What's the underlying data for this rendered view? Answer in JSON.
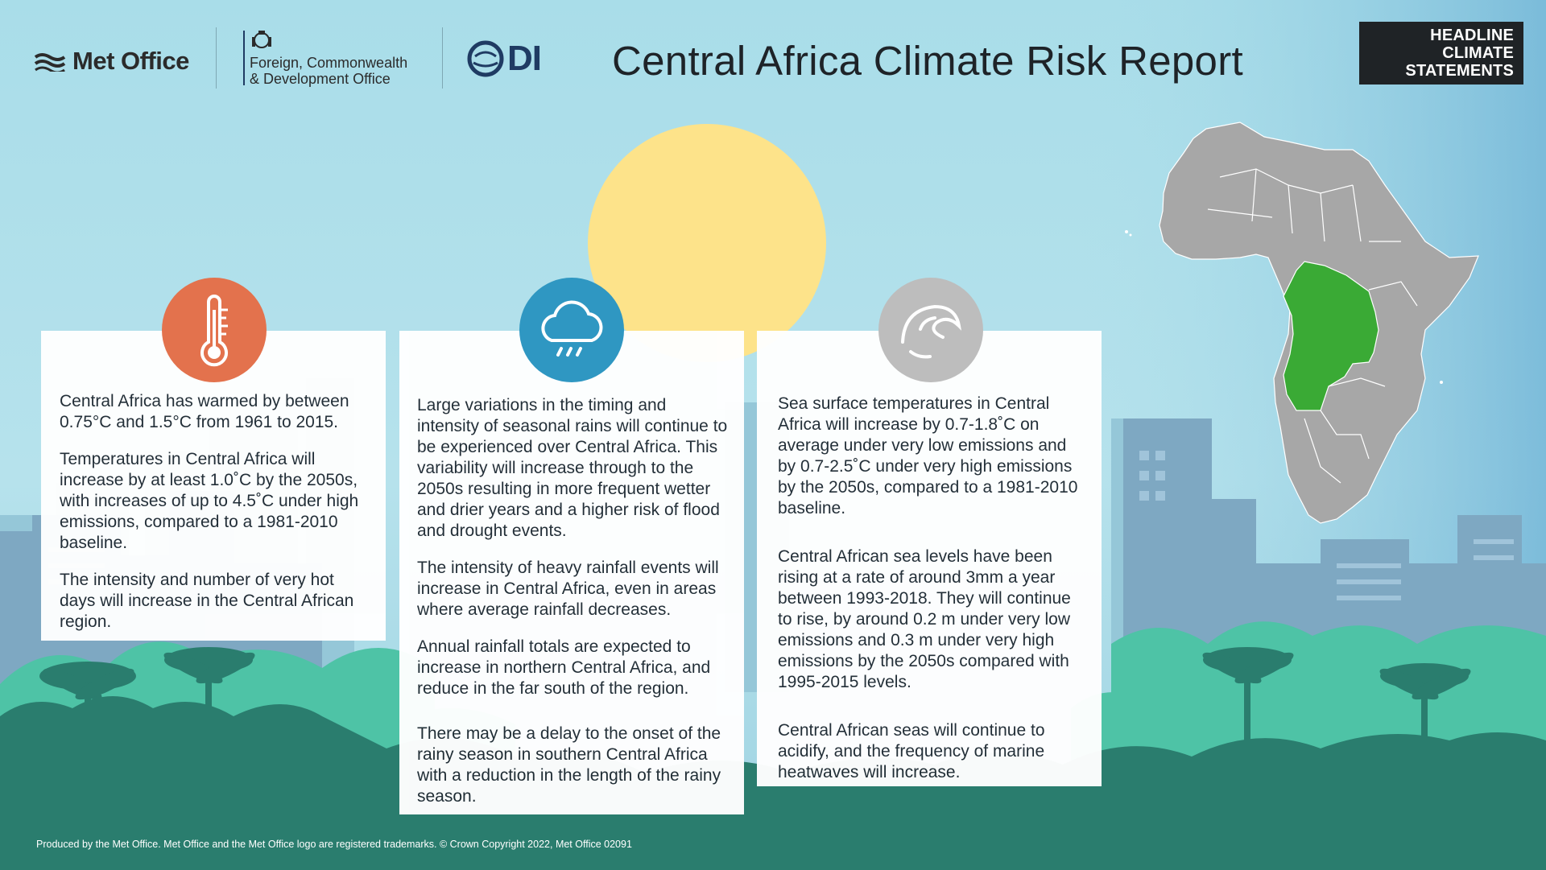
{
  "header": {
    "met_office_label": "Met Office",
    "fcdo_label": "Foreign, Commonwealth\n& Development Office",
    "odi_label": "DI",
    "title": "Central Africa Climate Risk Report",
    "badge": "HEADLINE\nCLIMATE\nSTATEMENTS"
  },
  "colors": {
    "sky": "#a9dde9",
    "sun": "#fde38a",
    "temperature_accent": "#e3724d",
    "rainfall_accent": "#2f97c2",
    "sea_accent": "#bdbdbd",
    "forest_dark": "#2a7d6e",
    "forest_light": "#4ec3a6",
    "central_africa_highlight": "#3aaa35",
    "africa_land": "#a7a7a7"
  },
  "cards": {
    "temperature": {
      "icon": "thermometer-icon",
      "paragraphs": [
        "Central Africa has warmed by between 0.75°C and 1.5°C from 1961 to 2015.",
        "Temperatures in Central Africa will increase by at least 1.0˚C by the 2050s, with increases of up to 4.5˚C under high emissions, compared to a 1981-2010 baseline.",
        "The intensity and number of very hot days will increase in the Central African region."
      ]
    },
    "rainfall": {
      "icon": "rain-cloud-icon",
      "paragraphs": [
        "Large variations in the timing and intensity of seasonal rains will continue to be experienced over Central Africa. This variability will increase through to the 2050s resulting in more frequent wetter and drier years and a higher risk of flood and drought events.",
        "The intensity of heavy rainfall events will increase in Central Africa, even in areas where average rainfall decreases.",
        "Annual rainfall totals are expected to increase in northern Central Africa, and reduce in the far south of the region.",
        "There may be a delay to the onset of the rainy season in southern Central Africa with a reduction in the length of the rainy season."
      ]
    },
    "sea": {
      "icon": "wave-icon",
      "paragraphs": [
        "Sea surface temperatures in Central Africa will increase by 0.7-1.8˚C on average under very low emissions and by 0.7-2.5˚C under very high emissions by the 2050s, compared to a 1981-2010 baseline.",
        "Central African sea levels have been rising at a rate of around 3mm a year between 1993-2018. They will continue to rise, by around 0.2 m under very low emissions and 0.3 m under very high emissions by the 2050s compared with 1995-2015 levels.",
        "Central African seas will continue to acidify, and the frequency of marine heatwaves will increase."
      ]
    }
  },
  "footer": "Produced by the Met Office. Met Office and the Met Office logo are registered trademarks. © Crown Copyright 2022, Met Office 02091"
}
